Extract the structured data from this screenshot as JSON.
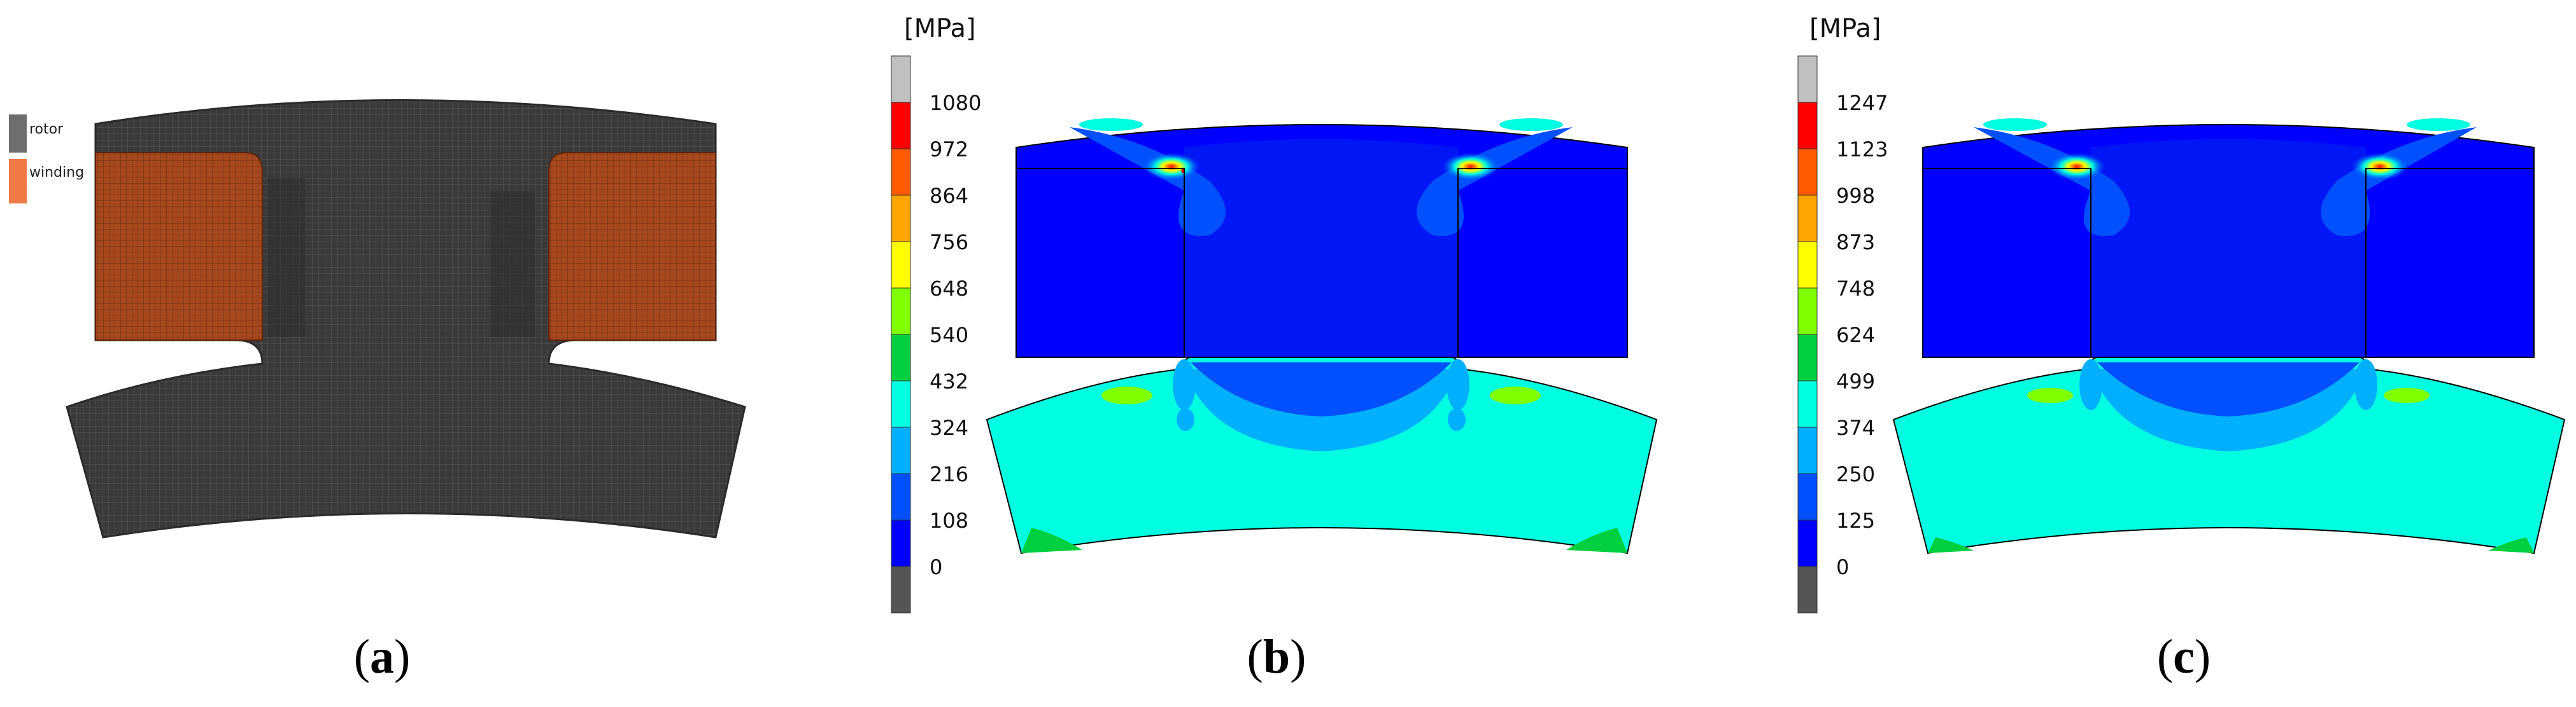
{
  "panel_a": {
    "legend": [
      {
        "label": "rotor",
        "color": "#6e6e6e"
      },
      {
        "label": "winding",
        "color": "#f07a45"
      }
    ],
    "caption": {
      "open": "(",
      "letter": "a",
      "close": ")"
    }
  },
  "panel_b": {
    "unit": "[MPa]",
    "ticks": [
      "1080",
      "972",
      "864",
      "756",
      "648",
      "540",
      "432",
      "324",
      "216",
      "108",
      "0"
    ],
    "caption": {
      "open": "(",
      "letter": "b",
      "close": ")"
    }
  },
  "panel_c": {
    "unit": "[MPa]",
    "ticks": [
      "1247",
      "1123",
      "998",
      "873",
      "748",
      "624",
      "499",
      "374",
      "250",
      "125",
      "0"
    ],
    "caption": {
      "open": "(",
      "letter": "c",
      "close": ")"
    }
  },
  "colors": {
    "scale": [
      "#c0c0c0",
      "#ff0000",
      "#ff5a00",
      "#ffa500",
      "#ffff00",
      "#80ff00",
      "#00d040",
      "#00ffe0",
      "#00b0ff",
      "#0050ff",
      "#0000ff",
      "#555555"
    ],
    "mesh": "#3c3c3c",
    "winding": "#a0451c"
  }
}
